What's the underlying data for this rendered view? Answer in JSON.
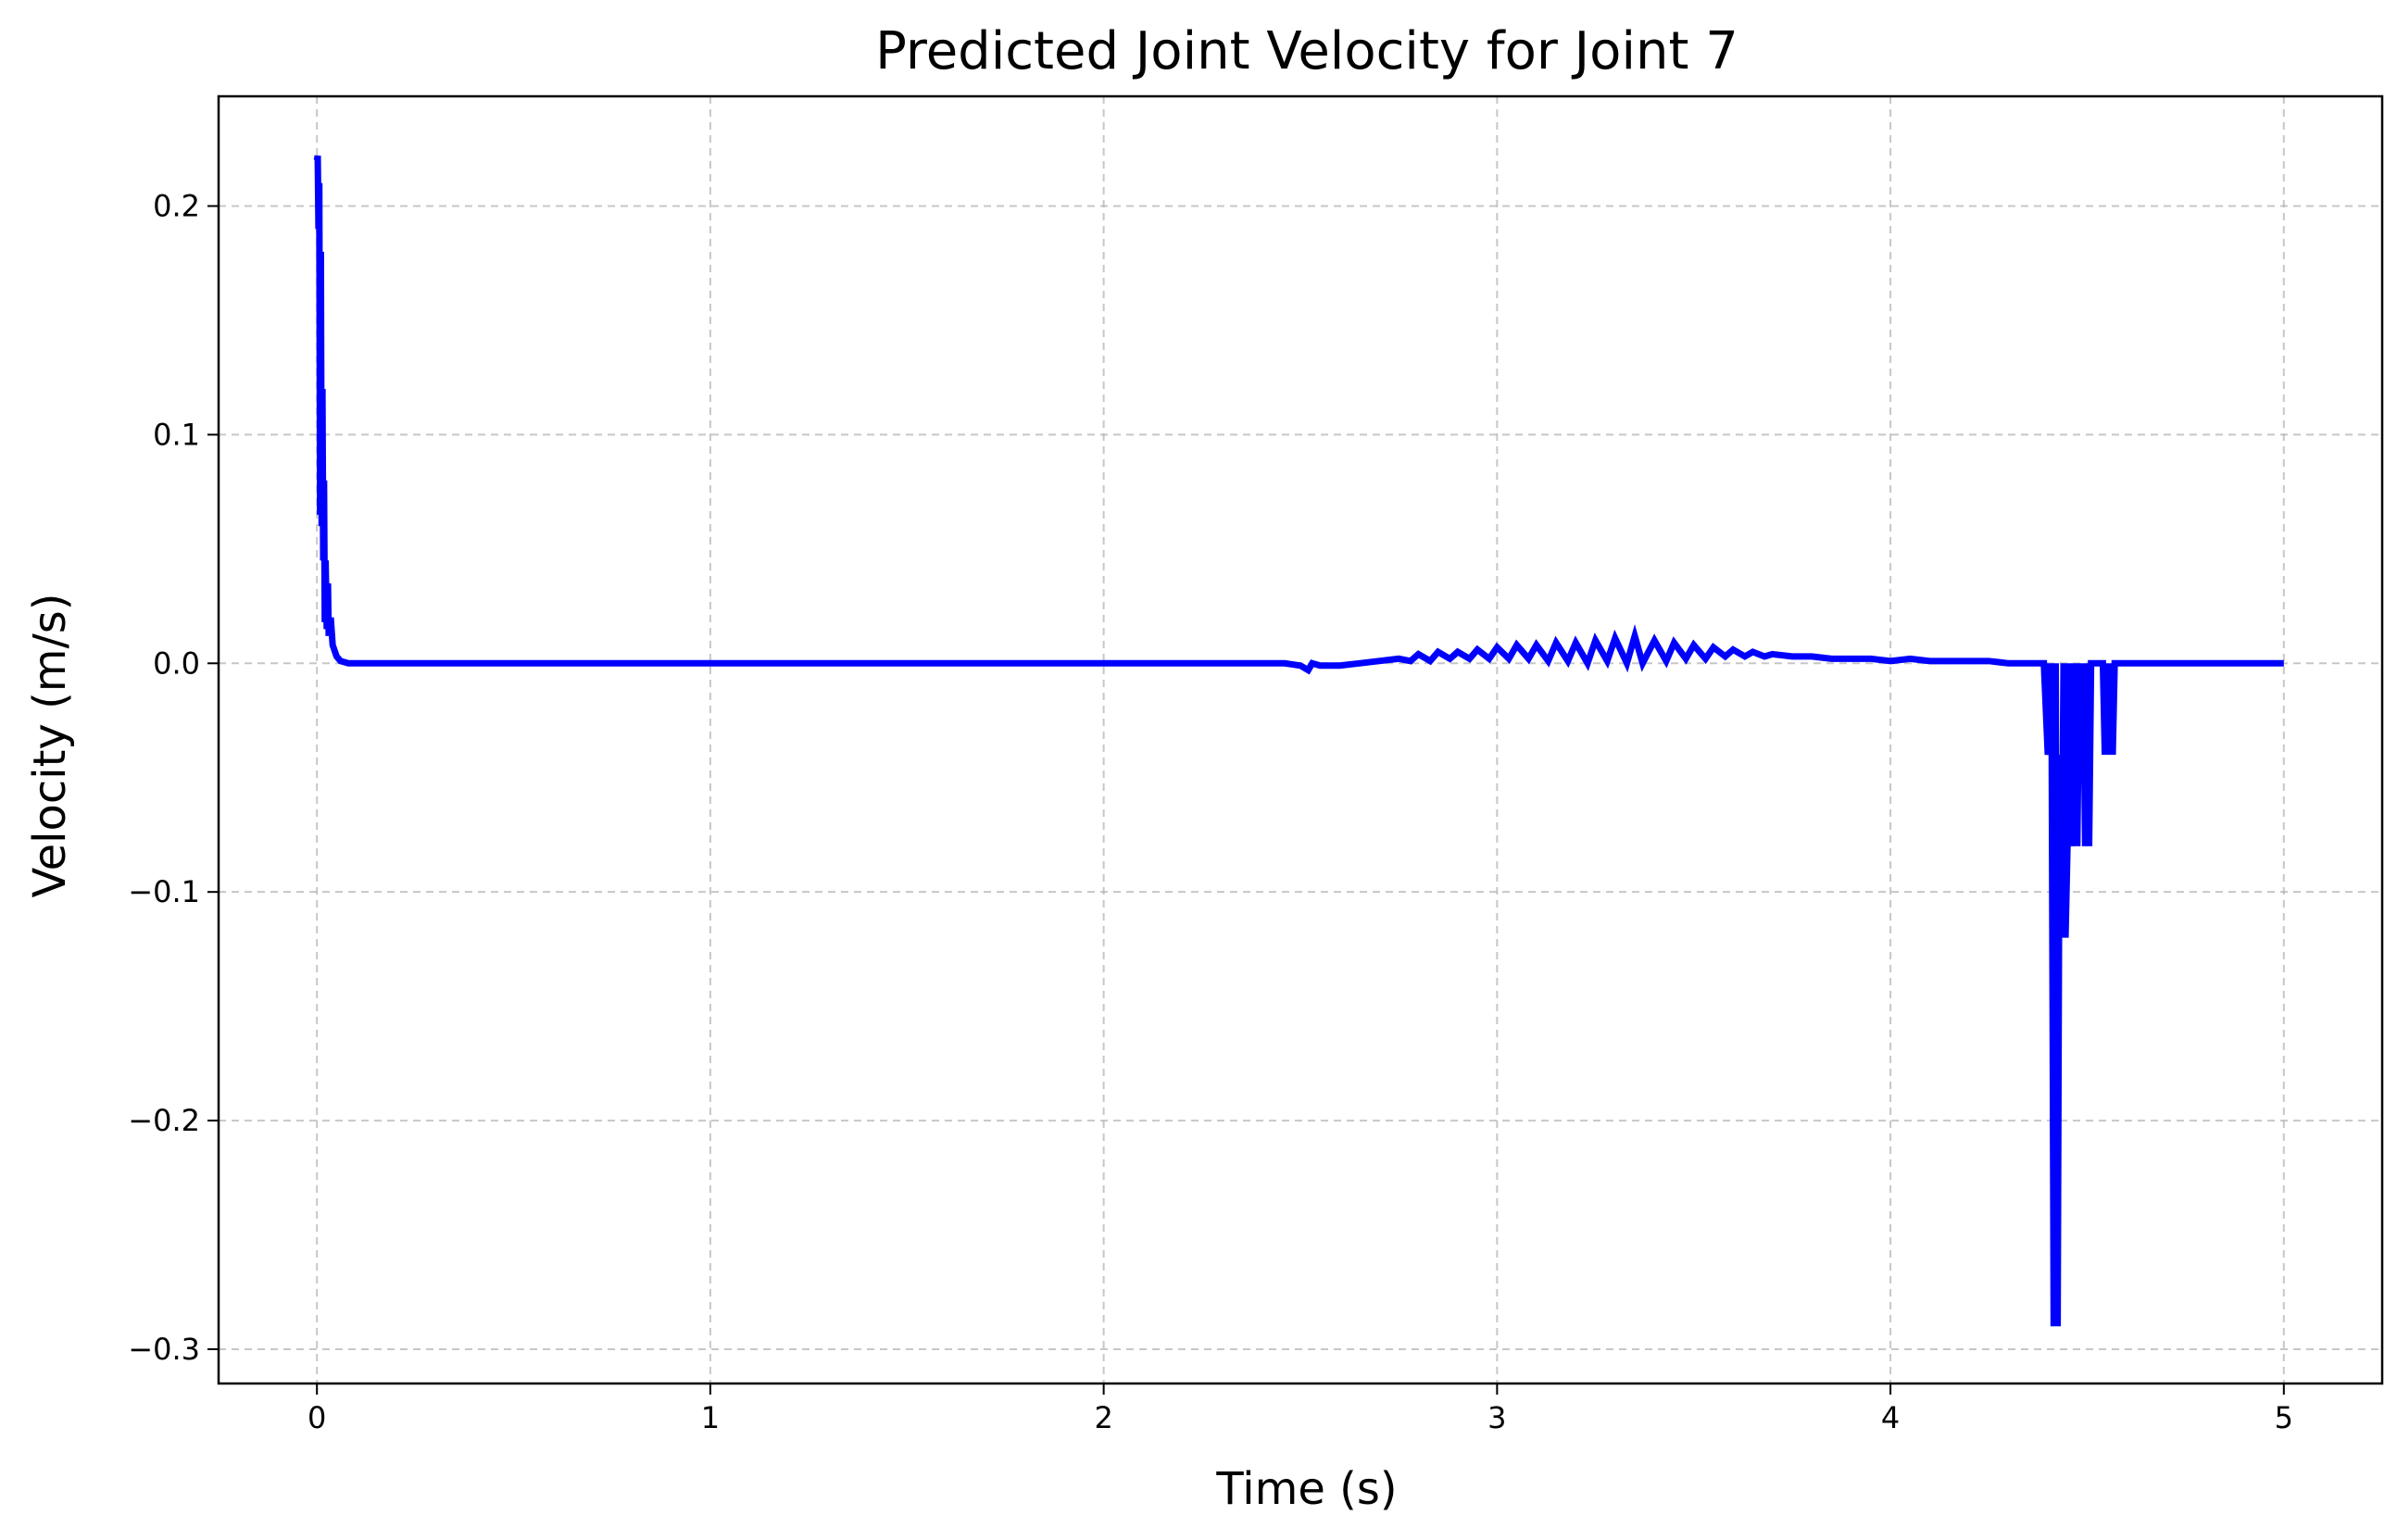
{
  "chart_data": {
    "type": "line",
    "title": "Predicted Joint Velocity for Joint 7",
    "xlabel": "Time (s)",
    "ylabel": "Velocity (m/s)",
    "xlim": [
      -0.25,
      5.25
    ],
    "ylim": [
      -0.315,
      0.248
    ],
    "xticks": [
      0,
      1,
      2,
      3,
      4,
      5
    ],
    "xtick_labels": [
      "0",
      "1",
      "2",
      "3",
      "4",
      "5"
    ],
    "yticks": [
      -0.3,
      -0.2,
      -0.1,
      0.0,
      0.1,
      0.2
    ],
    "ytick_labels": [
      "−0.3",
      "−0.2",
      "−0.1",
      "0.0",
      "0.1",
      "0.2"
    ],
    "grid": true,
    "series": [
      {
        "color": "#0000ff",
        "x": [
          0.0,
          0.002,
          0.004,
          0.006,
          0.008,
          0.01,
          0.012,
          0.014,
          0.016,
          0.018,
          0.02,
          0.022,
          0.025,
          0.028,
          0.03,
          0.035,
          0.04,
          0.05,
          0.06,
          0.08,
          0.1,
          0.5,
          1.0,
          1.5,
          2.0,
          2.4,
          2.46,
          2.5,
          2.52,
          2.53,
          2.55,
          2.6,
          2.65,
          2.7,
          2.75,
          2.78,
          2.8,
          2.83,
          2.85,
          2.88,
          2.9,
          2.93,
          2.95,
          2.98,
          3.0,
          3.03,
          3.05,
          3.08,
          3.1,
          3.13,
          3.15,
          3.18,
          3.2,
          3.23,
          3.25,
          3.28,
          3.3,
          3.33,
          3.35,
          3.37,
          3.4,
          3.43,
          3.45,
          3.48,
          3.5,
          3.53,
          3.55,
          3.58,
          3.6,
          3.63,
          3.65,
          3.68,
          3.7,
          3.75,
          3.8,
          3.85,
          3.9,
          3.95,
          4.0,
          4.05,
          4.1,
          4.15,
          4.2,
          4.25,
          4.3,
          4.35,
          4.39,
          4.4,
          4.405,
          4.41,
          4.415,
          4.42,
          4.425,
          4.43,
          4.435,
          4.44,
          4.445,
          4.45,
          4.455,
          4.46,
          4.465,
          4.47,
          4.475,
          4.48,
          4.485,
          4.49,
          4.495,
          4.5,
          4.505,
          4.51,
          4.52,
          4.54,
          4.545,
          4.55,
          4.555,
          4.56,
          4.565,
          4.57,
          4.6,
          4.8,
          5.0
        ],
        "y": [
          0.22,
          0.222,
          0.19,
          0.21,
          0.065,
          0.18,
          0.06,
          0.12,
          0.045,
          0.08,
          0.018,
          0.045,
          0.015,
          0.035,
          0.012,
          0.02,
          0.008,
          0.003,
          0.001,
          0.0,
          0.0,
          0.0,
          0.0,
          0.0,
          0.0,
          0.0,
          0.0,
          -0.001,
          -0.003,
          0.0,
          -0.001,
          -0.001,
          0.0,
          0.001,
          0.002,
          0.001,
          0.004,
          0.001,
          0.005,
          0.002,
          0.005,
          0.002,
          0.006,
          0.002,
          0.007,
          0.002,
          0.008,
          0.002,
          0.008,
          0.001,
          0.009,
          0.001,
          0.009,
          0.0,
          0.01,
          0.001,
          0.011,
          0.0,
          0.012,
          0.0,
          0.01,
          0.001,
          0.009,
          0.002,
          0.008,
          0.002,
          0.007,
          0.003,
          0.006,
          0.003,
          0.005,
          0.003,
          0.004,
          0.003,
          0.003,
          0.002,
          0.002,
          0.002,
          0.001,
          0.002,
          0.001,
          0.001,
          0.001,
          0.001,
          0.0,
          0.0,
          0.0,
          -0.04,
          0.0,
          -0.04,
          -0.29,
          0.0,
          -0.29,
          -0.04,
          -0.12,
          0.0,
          -0.12,
          -0.08,
          0.0,
          -0.04,
          -0.08,
          0.0,
          -0.08,
          0.0,
          -0.04,
          0.0,
          -0.08,
          0.0,
          -0.08,
          0.0,
          0.0,
          0.0,
          -0.04,
          0.0,
          -0.04,
          0.0,
          -0.04,
          0.0,
          0.0,
          0.0,
          0.0
        ]
      }
    ]
  }
}
